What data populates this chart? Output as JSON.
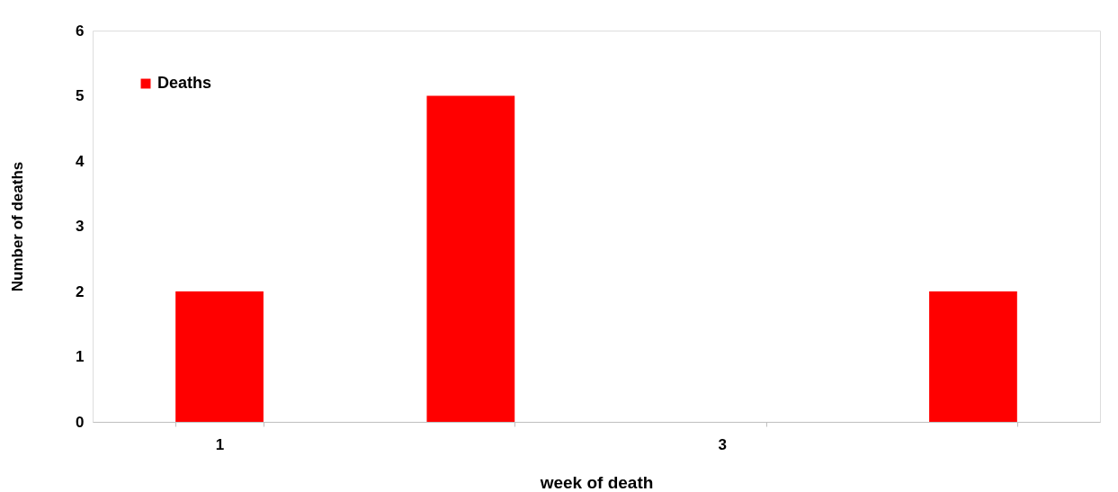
{
  "chart_data": {
    "type": "bar",
    "xlabel": "week of death",
    "ylabel": "Number of deaths",
    "categories": [
      "1",
      null,
      "3",
      null
    ],
    "series": [
      {
        "name": "Deaths",
        "color": "#ff0000",
        "values": [
          2,
          5,
          0,
          2
        ]
      }
    ],
    "ylim": [
      0,
      6
    ],
    "yticks": [
      0,
      1,
      2,
      3,
      4,
      5,
      6
    ],
    "grid": false,
    "legend": "top left"
  }
}
